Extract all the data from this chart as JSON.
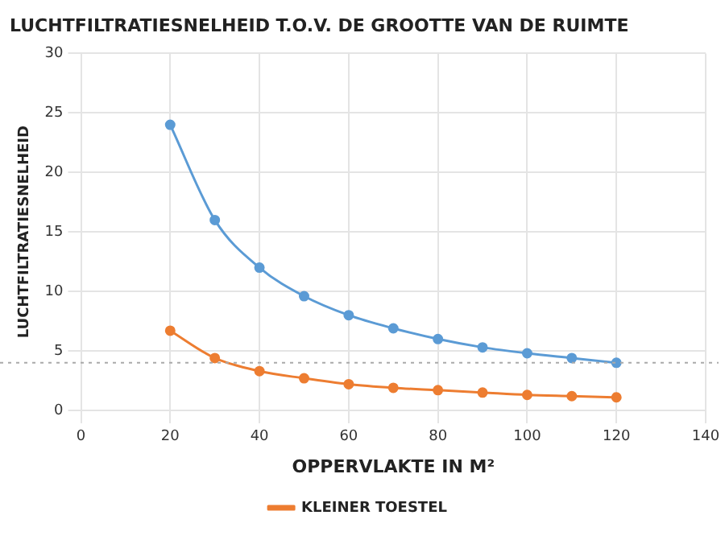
{
  "chart_data": {
    "type": "line",
    "title": "LUCHTFILTRATIESNELHEID T.O.V. DE GROOTTE VAN DE RUIMTE",
    "xlabel": "OPPERVLAKTE IN M²",
    "ylabel": "LUCHTFILTRATIESNELHEID",
    "x": [
      20,
      30,
      40,
      50,
      60,
      70,
      80,
      90,
      100,
      110,
      120
    ],
    "series": [
      {
        "color": "#5b9bd5",
        "values": [
          24,
          16,
          12,
          9.6,
          8,
          6.9,
          6,
          5.3,
          4.8,
          4.4,
          4
        ]
      },
      {
        "name": "KLEINER TOESTEL",
        "color": "#ed7d31",
        "values": [
          6.7,
          4.4,
          3.3,
          2.7,
          2.2,
          1.9,
          1.7,
          1.5,
          1.3,
          1.2,
          1.1
        ]
      }
    ],
    "xlim": [
      0,
      140
    ],
    "xticks": [
      0,
      20,
      40,
      60,
      80,
      100,
      120,
      140
    ],
    "ylim": [
      0,
      30
    ],
    "yticks": [
      0,
      5,
      10,
      15,
      20,
      25,
      30
    ],
    "ref_lines": [
      {
        "axis": "y",
        "value": 4,
        "color": "#aaaaaa",
        "line_style": "dotted"
      }
    ],
    "grid": true,
    "legend": "bottom",
    "marker": "circle",
    "line_style": "solid"
  }
}
